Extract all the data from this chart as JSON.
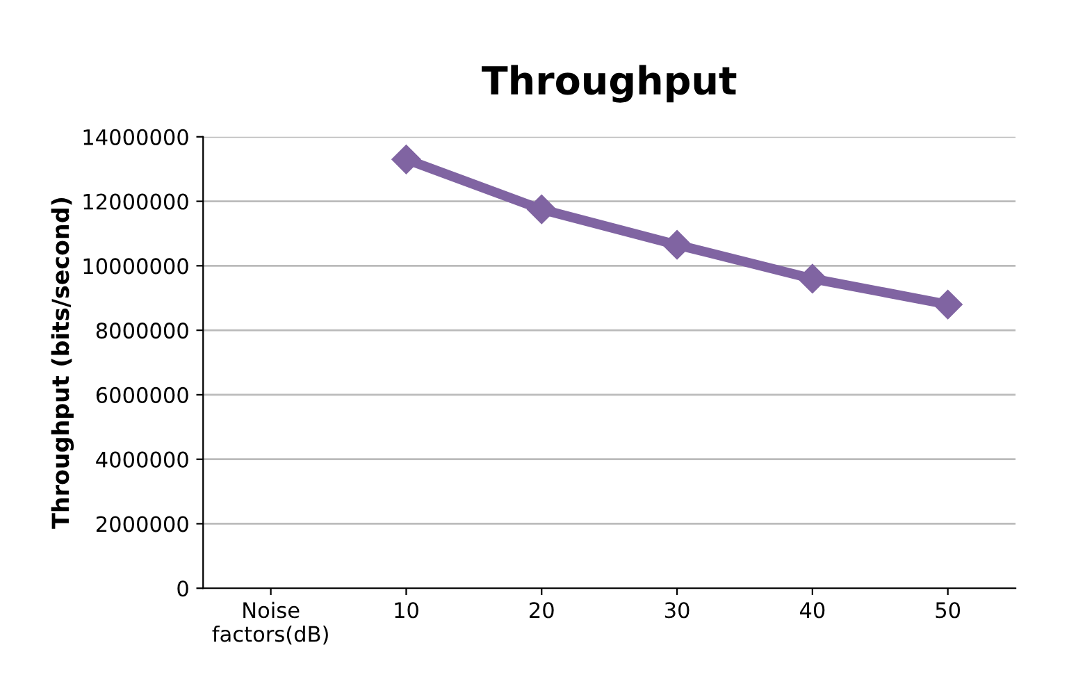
{
  "chart_data": {
    "type": "line",
    "title": "Throughput",
    "ylabel": "Throughput (bits/second)",
    "categories": [
      "Noise\nfactors(dB)",
      "10",
      "20",
      "30",
      "40",
      "50"
    ],
    "series": [
      {
        "color": "#8064a2",
        "values": [
          null,
          13300000,
          11750000,
          10650000,
          9600000,
          8800000
        ]
      }
    ],
    "ylim": [
      0,
      14000000
    ],
    "yticks": [
      0,
      2000000,
      4000000,
      6000000,
      8000000,
      10000000,
      12000000,
      14000000
    ],
    "grid": "y",
    "marker": "diamond",
    "line_style": "solid",
    "legend": false
  }
}
